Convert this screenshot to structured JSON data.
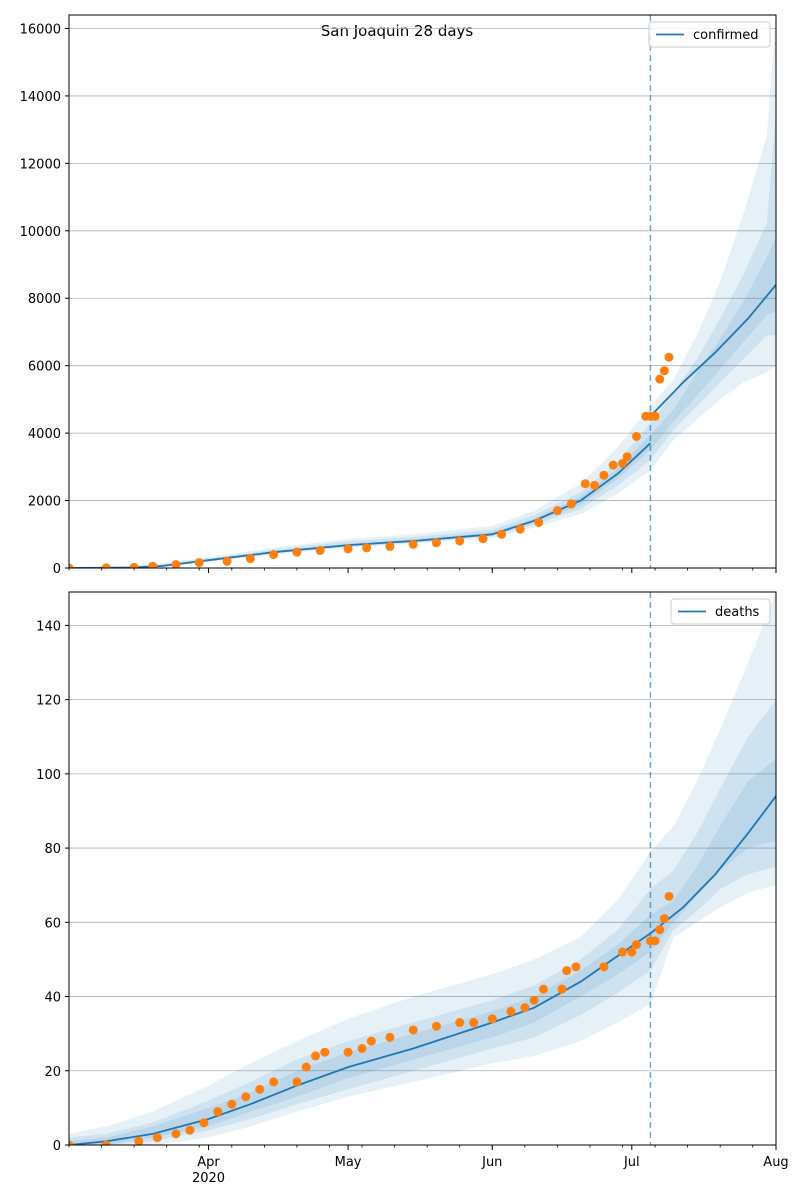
{
  "figure": {
    "title": "San Joaquin 28 days"
  },
  "colors": {
    "line": "#1f77b4",
    "observed": "#ff7f0e",
    "band": "#1f77b4",
    "grid": "#b0b0b0",
    "cutoff": "#1f77b4"
  },
  "x_ticks": [
    {
      "month": "Apr",
      "year": "2020",
      "day": 31
    },
    {
      "month": "May",
      "year": "",
      "day": 61
    },
    {
      "month": "Jun",
      "year": "",
      "day": 92
    },
    {
      "month": "Jul",
      "year": "",
      "day": 122
    },
    {
      "month": "Aug",
      "year": "",
      "day": 153
    }
  ],
  "chart_data": [
    {
      "type": "line",
      "legend": "confirmed",
      "legend_position": "top-right",
      "grid": "horizontal",
      "xlim": [
        "2020-03-02",
        "2020-08-01"
      ],
      "ylim": [
        0,
        16400
      ],
      "y_ticks": [
        0,
        2000,
        4000,
        6000,
        8000,
        10000,
        12000,
        14000,
        16000
      ],
      "forecast_start": "2020-07-05",
      "fit_median": {
        "dates": [
          "2020-03-02",
          "2020-03-15",
          "2020-03-22",
          "2020-04-01",
          "2020-04-15",
          "2020-05-01",
          "2020-05-15",
          "2020-06-01",
          "2020-06-10",
          "2020-06-20",
          "2020-06-28",
          "2020-07-05"
        ],
        "values": [
          0,
          10,
          60,
          230,
          470,
          680,
          800,
          1000,
          1400,
          2000,
          2800,
          3700
        ]
      },
      "forecast_median": {
        "dates": [
          "2020-07-05",
          "2020-07-12",
          "2020-07-19",
          "2020-07-26",
          "2020-08-01"
        ],
        "values": [
          4500,
          5500,
          6400,
          7400,
          8400
        ]
      },
      "observed": {
        "dates": [
          "2020-03-02",
          "2020-03-10",
          "2020-03-16",
          "2020-03-20",
          "2020-03-25",
          "2020-03-30",
          "2020-04-05",
          "2020-04-10",
          "2020-04-15",
          "2020-04-20",
          "2020-04-25",
          "2020-05-01",
          "2020-05-05",
          "2020-05-10",
          "2020-05-15",
          "2020-05-20",
          "2020-05-25",
          "2020-05-30",
          "2020-06-03",
          "2020-06-07",
          "2020-06-11",
          "2020-06-15",
          "2020-06-18",
          "2020-06-21",
          "2020-06-23",
          "2020-06-25",
          "2020-06-27",
          "2020-06-29",
          "2020-06-30",
          "2020-07-02",
          "2020-07-04",
          "2020-07-05",
          "2020-07-06",
          "2020-07-07",
          "2020-07-08",
          "2020-07-09"
        ],
        "values": [
          0,
          5,
          20,
          50,
          100,
          160,
          200,
          280,
          400,
          470,
          520,
          570,
          600,
          640,
          700,
          750,
          800,
          870,
          1000,
          1150,
          1350,
          1700,
          1900,
          2500,
          2450,
          2750,
          3050,
          3100,
          3300,
          3900,
          4500,
          4500,
          4500,
          5600,
          5850,
          6250
        ]
      },
      "bands": [
        {
          "lower": [
            0,
            0,
            40,
            180,
            400,
            600,
            720,
            900,
            1200,
            1600,
            2200,
            2900,
            3800,
            4400,
            5000,
            5500,
            5800,
            6000
          ],
          "upper": [
            40,
            60,
            140,
            320,
            600,
            860,
            1000,
            1250,
            1700,
            2500,
            3600,
            4800,
            5600,
            6900,
            8500,
            10500,
            12800,
            16400
          ]
        },
        {
          "lower": [
            0,
            3,
            50,
            200,
            430,
            630,
            750,
            940,
            1280,
            1750,
            2450,
            3200,
            4100,
            4800,
            5500,
            6200,
            6900,
            6900
          ],
          "upper": [
            25,
            35,
            110,
            280,
            550,
            790,
            920,
            1140,
            1560,
            2250,
            3150,
            4300,
            5200,
            6200,
            7400,
            8700,
            10200,
            13500
          ]
        },
        {
          "lower": [
            0,
            6,
            55,
            215,
            450,
            655,
            775,
            970,
            1340,
            1880,
            2650,
            3500,
            4350,
            5100,
            5900,
            6700,
            7500,
            7600
          ],
          "upper": [
            15,
            20,
            80,
            250,
            500,
            720,
            850,
            1060,
            1460,
            2120,
            2960,
            3950,
            4700,
            5800,
            6800,
            7900,
            9200,
            9800
          ]
        }
      ],
      "band_dates": [
        "2020-03-02",
        "2020-03-15",
        "2020-03-22",
        "2020-04-01",
        "2020-04-15",
        "2020-05-01",
        "2020-05-15",
        "2020-06-01",
        "2020-06-10",
        "2020-06-20",
        "2020-06-28",
        "2020-07-05",
        "2020-07-10",
        "2020-07-15",
        "2020-07-20",
        "2020-07-25",
        "2020-07-30",
        "2020-08-01"
      ]
    },
    {
      "type": "line",
      "legend": "deaths",
      "legend_position": "top-right",
      "grid": "horizontal",
      "xlim": [
        "2020-03-02",
        "2020-08-01"
      ],
      "ylim": [
        0,
        149
      ],
      "y_ticks": [
        0,
        20,
        40,
        60,
        80,
        100,
        120,
        140
      ],
      "forecast_start": "2020-07-05",
      "fit_median": {
        "dates": [
          "2020-03-02",
          "2020-03-10",
          "2020-03-20",
          "2020-04-01",
          "2020-04-10",
          "2020-04-20",
          "2020-05-01",
          "2020-05-15",
          "2020-06-01",
          "2020-06-10",
          "2020-06-20",
          "2020-06-28",
          "2020-07-05"
        ],
        "values": [
          0,
          1,
          3,
          7,
          11,
          16,
          21,
          26,
          33,
          37,
          44,
          51,
          57
        ]
      },
      "forecast_median": {
        "dates": [
          "2020-07-05",
          "2020-07-12",
          "2020-07-19",
          "2020-07-26",
          "2020-08-01"
        ],
        "values": [
          57,
          64,
          73,
          84,
          94
        ]
      },
      "observed": {
        "dates": [
          "2020-03-02",
          "2020-03-10",
          "2020-03-17",
          "2020-03-21",
          "2020-03-25",
          "2020-03-28",
          "2020-03-31",
          "2020-04-03",
          "2020-04-06",
          "2020-04-09",
          "2020-04-12",
          "2020-04-15",
          "2020-04-20",
          "2020-04-22",
          "2020-04-24",
          "2020-04-26",
          "2020-05-01",
          "2020-05-04",
          "2020-05-06",
          "2020-05-10",
          "2020-05-15",
          "2020-05-20",
          "2020-05-25",
          "2020-05-28",
          "2020-06-01",
          "2020-06-05",
          "2020-06-08",
          "2020-06-10",
          "2020-06-12",
          "2020-06-16",
          "2020-06-17",
          "2020-06-19",
          "2020-06-25",
          "2020-06-29",
          "2020-07-01",
          "2020-07-02",
          "2020-07-05",
          "2020-07-06",
          "2020-07-07",
          "2020-07-08",
          "2020-07-09"
        ],
        "values": [
          0,
          0,
          1,
          2,
          3,
          4,
          6,
          9,
          11,
          13,
          15,
          17,
          17,
          21,
          24,
          25,
          25,
          26,
          28,
          29,
          31,
          32,
          33,
          33,
          34,
          36,
          37,
          39,
          42,
          42,
          47,
          48,
          48,
          52,
          52,
          54,
          55,
          55,
          58,
          61,
          67
        ]
      },
      "bands": [
        {
          "lower": [
            0,
            0,
            0,
            2,
            5,
            9,
            13,
            17,
            22,
            24,
            28,
            33,
            38,
            56,
            60,
            64,
            68,
            70
          ],
          "upper": [
            3,
            5,
            9,
            16,
            22,
            28,
            34,
            40,
            46,
            50,
            56,
            66,
            79,
            86,
            98,
            112,
            130,
            149
          ]
        },
        {
          "lower": [
            0,
            0,
            1,
            4,
            7,
            11,
            15,
            20,
            26,
            29,
            35,
            41,
            47,
            58,
            63,
            69,
            73,
            75
          ],
          "upper": [
            2,
            3,
            6,
            12,
            17,
            23,
            28,
            33,
            39,
            43,
            50,
            58,
            69,
            74,
            84,
            96,
            110,
            120
          ]
        },
        {
          "lower": [
            0,
            0,
            2,
            5,
            9,
            13,
            18,
            23,
            29,
            33,
            40,
            46,
            52,
            60,
            67,
            74,
            80,
            82
          ],
          "upper": [
            1,
            2,
            5,
            10,
            14,
            20,
            25,
            30,
            36,
            40,
            47,
            54,
            62,
            66,
            75,
            86,
            98,
            104
          ]
        }
      ],
      "band_dates": [
        "2020-03-02",
        "2020-03-10",
        "2020-03-20",
        "2020-04-01",
        "2020-04-10",
        "2020-04-20",
        "2020-05-01",
        "2020-05-15",
        "2020-06-01",
        "2020-06-10",
        "2020-06-20",
        "2020-06-28",
        "2020-07-05",
        "2020-07-10",
        "2020-07-15",
        "2020-07-20",
        "2020-07-26",
        "2020-08-01"
      ]
    }
  ]
}
